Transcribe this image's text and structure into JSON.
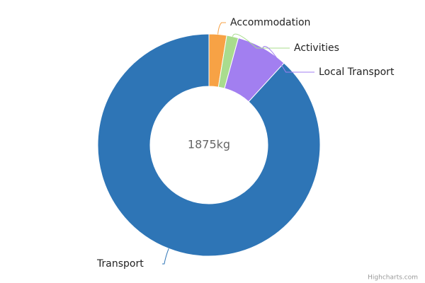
{
  "chart_data": {
    "type": "pie",
    "center_label": "1875kg",
    "credits": "Highcharts.com",
    "categories": [
      "Accommodation",
      "Activities",
      "Local Transport",
      "Transport"
    ],
    "values": [
      48,
      32,
      141,
      1654
    ],
    "colors": [
      "#f7a245",
      "#a9dc8e",
      "#a27ff0",
      "#2e75b6"
    ]
  }
}
